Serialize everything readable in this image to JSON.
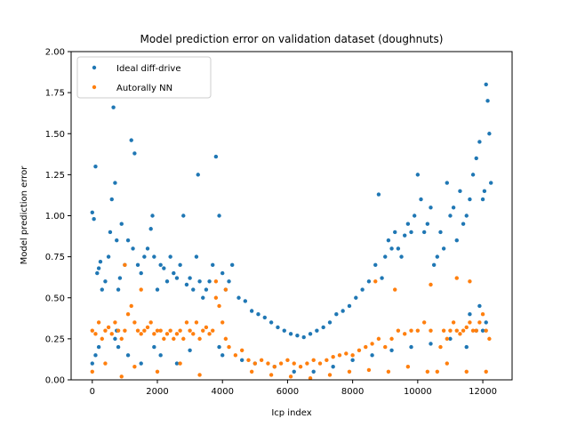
{
  "chart_data": {
    "type": "scatter",
    "title": "Model prediction error on validation dataset (doughnuts)",
    "xlabel": "Icp index",
    "ylabel": "Model prediction error",
    "xlim": [
      -650,
      12900
    ],
    "ylim": [
      0,
      2.0
    ],
    "xticks": [
      0,
      2000,
      4000,
      6000,
      8000,
      10000,
      12000
    ],
    "xtick_labels": [
      "0",
      "2000",
      "4000",
      "6000",
      "8000",
      "10000",
      "12000"
    ],
    "yticks": [
      0.0,
      0.25,
      0.5,
      0.75,
      1.0,
      1.25,
      1.5,
      1.75,
      2.0
    ],
    "ytick_labels": [
      "0.00",
      "0.25",
      "0.50",
      "0.75",
      "1.00",
      "1.25",
      "1.50",
      "1.75",
      "2.00"
    ],
    "grid": false,
    "legend_position": "upper-left",
    "series": [
      {
        "name": "Ideal diff-drive",
        "color": "#1f77b4",
        "x": [
          0,
          50,
          100,
          150,
          200,
          250,
          300,
          400,
          500,
          550,
          600,
          650,
          700,
          750,
          800,
          850,
          900,
          1000,
          1100,
          1200,
          1250,
          1300,
          1400,
          1500,
          1600,
          1700,
          1800,
          1850,
          1900,
          2000,
          2100,
          2200,
          2300,
          2400,
          2500,
          2600,
          2700,
          2800,
          2900,
          3000,
          3100,
          3200,
          3250,
          3300,
          3400,
          3500,
          3600,
          3700,
          3800,
          3900,
          4000,
          4100,
          4200,
          4300,
          4500,
          4700,
          4900,
          5100,
          5300,
          5500,
          5700,
          5900,
          6100,
          6300,
          6500,
          6700,
          6900,
          7100,
          7300,
          7500,
          7700,
          7900,
          8100,
          8300,
          8500,
          8700,
          8800,
          8900,
          9000,
          9100,
          9200,
          9300,
          9400,
          9500,
          9600,
          9700,
          9800,
          9900,
          10000,
          10100,
          10200,
          10300,
          10400,
          10500,
          10600,
          10700,
          10800,
          10900,
          11000,
          11100,
          11200,
          11300,
          11400,
          11500,
          11600,
          11700,
          11800,
          11900,
          12000,
          12050,
          12100,
          12150,
          12200,
          12250,
          0,
          100,
          200,
          700,
          750,
          800,
          1100,
          1500,
          1900,
          2100,
          2600,
          3000,
          3900,
          4000,
          4600,
          5000,
          5600,
          6200,
          6800,
          7400,
          8000,
          8600,
          9200,
          9800,
          10400,
          11000,
          11500,
          12000,
          12100,
          11800,
          11600,
          11900
        ],
        "y": [
          1.02,
          0.98,
          1.3,
          0.65,
          0.68,
          0.72,
          0.55,
          0.6,
          0.75,
          0.9,
          1.1,
          1.66,
          1.2,
          0.85,
          0.55,
          0.62,
          0.95,
          0.7,
          0.85,
          1.46,
          0.8,
          1.38,
          0.7,
          0.65,
          0.75,
          0.8,
          0.92,
          1.0,
          0.75,
          0.55,
          0.7,
          0.68,
          0.6,
          0.75,
          0.65,
          0.62,
          0.7,
          1.0,
          0.58,
          0.62,
          0.55,
          0.75,
          1.25,
          0.6,
          0.5,
          0.55,
          0.6,
          0.7,
          1.36,
          1.0,
          0.65,
          0.55,
          0.6,
          0.7,
          0.5,
          0.48,
          0.42,
          0.4,
          0.38,
          0.35,
          0.32,
          0.3,
          0.28,
          0.27,
          0.26,
          0.28,
          0.3,
          0.32,
          0.35,
          0.4,
          0.42,
          0.45,
          0.5,
          0.55,
          0.6,
          0.7,
          1.13,
          0.62,
          0.75,
          0.85,
          0.8,
          0.9,
          0.8,
          0.75,
          0.88,
          0.95,
          0.9,
          1.0,
          1.25,
          1.1,
          0.9,
          0.95,
          1.05,
          0.7,
          0.75,
          0.9,
          0.8,
          1.2,
          1.0,
          1.05,
          0.85,
          1.15,
          0.95,
          1.0,
          1.1,
          1.25,
          1.35,
          1.45,
          1.1,
          1.15,
          1.8,
          1.7,
          1.5,
          1.2,
          0.1,
          0.15,
          0.2,
          0.25,
          0.3,
          0.2,
          0.15,
          0.1,
          0.2,
          0.15,
          0.1,
          0.18,
          0.2,
          0.15,
          0.12,
          0.1,
          0.08,
          0.05,
          0.05,
          0.08,
          0.12,
          0.15,
          0.18,
          0.2,
          0.22,
          0.25,
          0.2,
          0.3,
          0.35,
          0.3,
          0.4,
          0.45
        ]
      },
      {
        "name": "Autorally NN",
        "color": "#ff7f0e",
        "x": [
          0,
          100,
          200,
          300,
          400,
          500,
          600,
          700,
          800,
          900,
          1000,
          1100,
          1200,
          1300,
          1400,
          1500,
          1600,
          1700,
          1800,
          1900,
          2000,
          2100,
          2200,
          2300,
          2400,
          2500,
          2600,
          2700,
          2800,
          2900,
          3000,
          3100,
          3200,
          3300,
          3400,
          3500,
          3600,
          3700,
          3800,
          3900,
          4000,
          4100,
          4200,
          4400,
          4600,
          4800,
          5000,
          5200,
          5400,
          5600,
          5800,
          6000,
          6200,
          6400,
          6600,
          6800,
          7000,
          7200,
          7400,
          7600,
          7800,
          8000,
          8200,
          8400,
          8600,
          8800,
          9000,
          9200,
          9400,
          9600,
          9800,
          10000,
          10200,
          10400,
          10600,
          10700,
          10800,
          10900,
          11000,
          11100,
          11200,
          11300,
          11400,
          11500,
          11600,
          11700,
          11800,
          11900,
          12000,
          12100,
          12200,
          1000,
          1500,
          3800,
          4100,
          8700,
          9300,
          10400,
          11200,
          11600,
          0,
          400,
          900,
          1300,
          2000,
          2700,
          3300,
          4900,
          5500,
          6100,
          6700,
          7300,
          7900,
          8500,
          9100,
          9700,
          10300,
          10900,
          11500,
          12100
        ],
        "y": [
          0.3,
          0.28,
          0.35,
          0.25,
          0.3,
          0.32,
          0.28,
          0.35,
          0.3,
          0.25,
          0.3,
          0.4,
          0.45,
          0.35,
          0.3,
          0.28,
          0.3,
          0.32,
          0.35,
          0.28,
          0.3,
          0.3,
          0.25,
          0.28,
          0.3,
          0.25,
          0.28,
          0.3,
          0.25,
          0.35,
          0.3,
          0.28,
          0.35,
          0.25,
          0.3,
          0.32,
          0.28,
          0.3,
          0.5,
          0.45,
          0.35,
          0.25,
          0.2,
          0.15,
          0.18,
          0.12,
          0.1,
          0.12,
          0.1,
          0.08,
          0.1,
          0.12,
          0.1,
          0.08,
          0.1,
          0.12,
          0.1,
          0.12,
          0.14,
          0.15,
          0.16,
          0.15,
          0.18,
          0.2,
          0.22,
          0.25,
          0.2,
          0.25,
          0.3,
          0.28,
          0.3,
          0.3,
          0.35,
          0.3,
          0.05,
          0.2,
          0.3,
          0.25,
          0.3,
          0.35,
          0.3,
          0.28,
          0.3,
          0.32,
          0.35,
          0.3,
          0.3,
          0.35,
          0.4,
          0.3,
          0.25,
          0.7,
          0.55,
          0.6,
          0.55,
          0.6,
          0.55,
          0.58,
          0.62,
          0.6,
          0.05,
          0.1,
          0.02,
          0.08,
          0.05,
          0.1,
          0.03,
          0.05,
          0.03,
          0.02,
          0.01,
          0.03,
          0.05,
          0.06,
          0.05,
          0.08,
          0.05,
          0.1,
          0.05,
          0.05
        ]
      }
    ]
  }
}
